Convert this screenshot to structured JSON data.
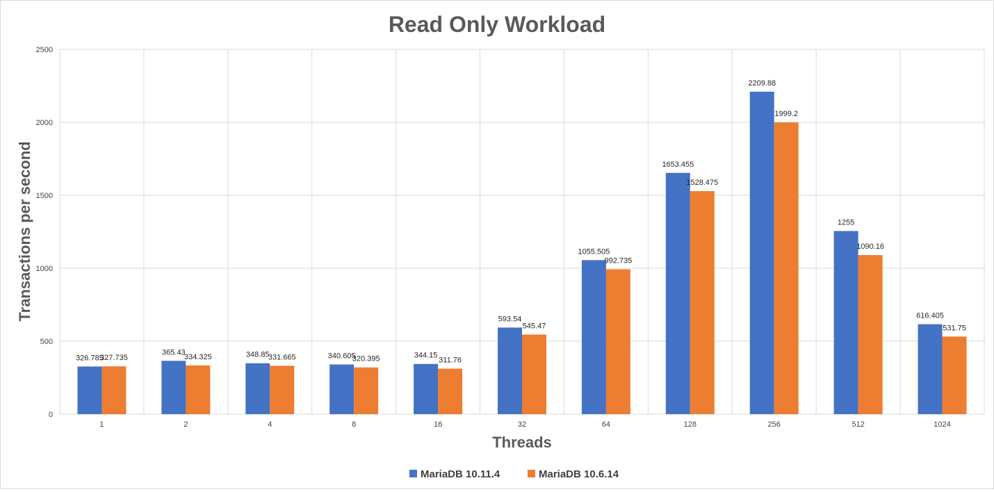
{
  "chart_data": {
    "type": "bar",
    "title": "Read Only Workload",
    "xlabel": "Threads",
    "ylabel": "Transactions per second",
    "categories": [
      "1",
      "2",
      "4",
      "8",
      "16",
      "32",
      "64",
      "128",
      "256",
      "512",
      "1024"
    ],
    "ylim": [
      0,
      2500
    ],
    "yticks": [
      0,
      500,
      1000,
      1500,
      2000,
      2500
    ],
    "grid": true,
    "legend_position": "bottom",
    "series": [
      {
        "name": "MariaDB 10.11.4",
        "color": "#4472C4",
        "values": [
          326.785,
          365.43,
          348.85,
          340.605,
          344.15,
          593.54,
          1055.505,
          1653.455,
          2209.88,
          1255,
          616.405
        ],
        "labels": [
          "326.785",
          "365.43",
          "348.85",
          "340.605",
          "344.15",
          "593.54",
          "1055.505",
          "1653.455",
          "2209.88",
          "1255",
          "616.405"
        ]
      },
      {
        "name": "MariaDB 10.6.14",
        "color": "#ED7D31",
        "values": [
          327.735,
          334.325,
          331.665,
          320.395,
          311.76,
          545.47,
          992.735,
          1528.475,
          1999.2,
          1090.16,
          531.75
        ],
        "labels": [
          "327.735",
          "334.325",
          "331.665",
          "320.395",
          "311.76",
          "545.47",
          "992.735",
          "1528.475",
          "1999.2",
          "1090.16",
          "531.75"
        ]
      }
    ]
  }
}
